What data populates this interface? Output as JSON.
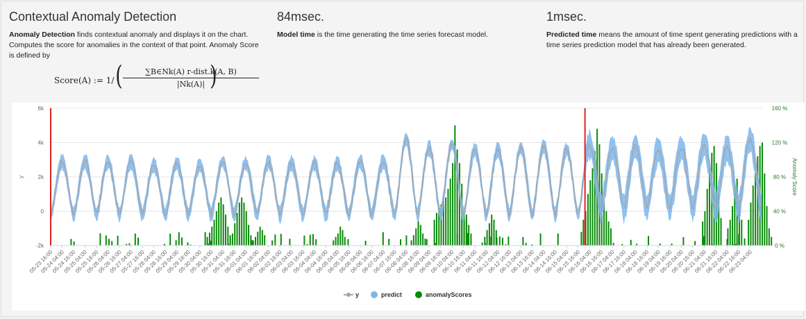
{
  "cards": [
    {
      "title": "Contextual Anomaly Detection",
      "bold": "Anomaly Detection",
      "text": " finds contextual anomaly and displays it on the chart. Computes the score for anomalies in the context of that point. Anomaly Score is defined by"
    },
    {
      "title": "84msec.",
      "bold": "Model time",
      "text": " is the time generating the time series forecast model."
    },
    {
      "title": "1msec.",
      "bold": "Predicted time",
      "text": " means the amount of time spent generating predictions with a time series prediction model that has already been generated."
    }
  ],
  "formula": {
    "lhs": "Score(A) := 1/",
    "numerator": "∑B∈Nk(A) r-dist.k(A, B)",
    "denominator": "|Nk(A)|"
  },
  "colors": {
    "y": "#a6a6a6",
    "predict": "#7db6ec",
    "anomalyScores": "#0a8a0a",
    "marker": "#e02020"
  },
  "chart_data": {
    "type": "line",
    "ylabel": "y",
    "y2label": "Anomaly Score",
    "ylim": [
      -2000,
      6000
    ],
    "y2lim": [
      0,
      160
    ],
    "yticks": [
      "-2k",
      "0",
      "2k",
      "4k",
      "6k"
    ],
    "y2ticks": [
      "0 %",
      "40 %",
      "80 %",
      "120 %",
      "160 %"
    ],
    "legend": [
      "y",
      "predict",
      "anomalyScores"
    ],
    "legend_position": "bottom",
    "xticks": [
      "05-23 16:00",
      "05-24 04:00",
      "05-24 16:00",
      "05-25 04:00",
      "05-25 16:00",
      "05-26 04:00",
      "05-26 16:00",
      "05-27 04:00",
      "05-27 16:00",
      "05-28 04:00",
      "05-28 16:00",
      "05-29 04:00",
      "05-29 16:00",
      "05-30 04:00",
      "05-30 16:00",
      "05-31 04:00",
      "05-31 16:00",
      "06-01 04:00",
      "06-01 16:00",
      "06-02 04:00",
      "06-02 16:00",
      "06-03 04:00",
      "06-03 16:00",
      "06-04 04:00",
      "06-04 16:00",
      "06-05 04:00",
      "06-05 16:00",
      "06-06 04:00",
      "06-06 16:00",
      "06-07 04:00",
      "06-07 16:00",
      "06-08 04:00",
      "06-08 16:00",
      "06-09 04:00",
      "06-09 16:00",
      "06-10 04:00",
      "06-10 16:00",
      "06-11 04:00",
      "06-11 16:00",
      "06-12 04:00",
      "06-12 16:00",
      "06-13 04:00",
      "06-13 16:00",
      "06-14 04:00",
      "06-14 16:00",
      "06-15 04:00",
      "06-15 16:00",
      "06-16 04:00",
      "06-16 16:00",
      "06-17 04:00",
      "06-17 16:00",
      "06-18 04:00",
      "06-18 16:00",
      "06-19 04:00",
      "06-19 16:00",
      "06-20 04:00",
      "06-20 16:00",
      "06-21 04:00",
      "06-21 16:00",
      "06-22 04:00",
      "06-22 16:00",
      "06-23 04:00"
    ],
    "markers": [
      0,
      23.3
    ],
    "daily_peaks": [
      2900,
      2900,
      2900,
      2900,
      2700,
      2800,
      2700,
      2900,
      2800,
      2900,
      2800,
      2800,
      2800,
      2900,
      2900,
      4200,
      3700,
      3900,
      3600,
      3600,
      3700,
      3800,
      3600,
      3900,
      3700,
      3800,
      3600,
      3700,
      3900,
      3700,
      4200
    ],
    "peaks_y_high": [
      4400,
      4500,
      4200,
      4100,
      4200,
      4400,
      4300,
      4600,
      4800
    ],
    "anomaly_clusters": [
      {
        "day": 6.8,
        "values": [
          10,
          15,
          22,
          30,
          40,
          50,
          56,
          48,
          36,
          22,
          12
        ]
      },
      {
        "day": 7.8,
        "values": [
          8,
          14,
          26,
          38,
          50,
          56,
          50,
          40,
          24,
          12
        ]
      },
      {
        "day": 8.8,
        "values": [
          6,
          10,
          16,
          22,
          18,
          12
        ]
      },
      {
        "day": 12.3,
        "values": [
          6,
          10,
          14,
          22,
          18,
          10
        ]
      },
      {
        "day": 15.7,
        "values": [
          6,
          12,
          20,
          28,
          24,
          14,
          8
        ]
      },
      {
        "day": 16.7,
        "values": [
          30,
          38,
          44,
          48,
          52,
          56,
          66,
          78,
          96,
          140,
          112,
          96,
          72,
          40,
          30
        ]
      },
      {
        "day": 17.7,
        "values": [
          14,
          22,
          30,
          38,
          36,
          24,
          14
        ]
      },
      {
        "day": 18.9,
        "values": [
          10,
          18,
          26,
          36,
          30,
          18
        ]
      },
      {
        "day": 23.2,
        "values": [
          30,
          40,
          60,
          76,
          90,
          110,
          136,
          118,
          84,
          50,
          40,
          28,
          20
        ]
      },
      {
        "day": 28.4,
        "values": [
          28,
          40,
          66,
          90,
          108,
          116,
          96,
          60,
          32
        ]
      },
      {
        "day": 29.5,
        "values": [
          20,
          30,
          46,
          70,
          78,
          52,
          30
        ]
      },
      {
        "day": 30.4,
        "values": [
          30,
          50,
          70,
          84,
          104,
          116,
          120,
          84,
          46,
          20,
          10
        ]
      }
    ],
    "anomaly_background_max": 16
  }
}
